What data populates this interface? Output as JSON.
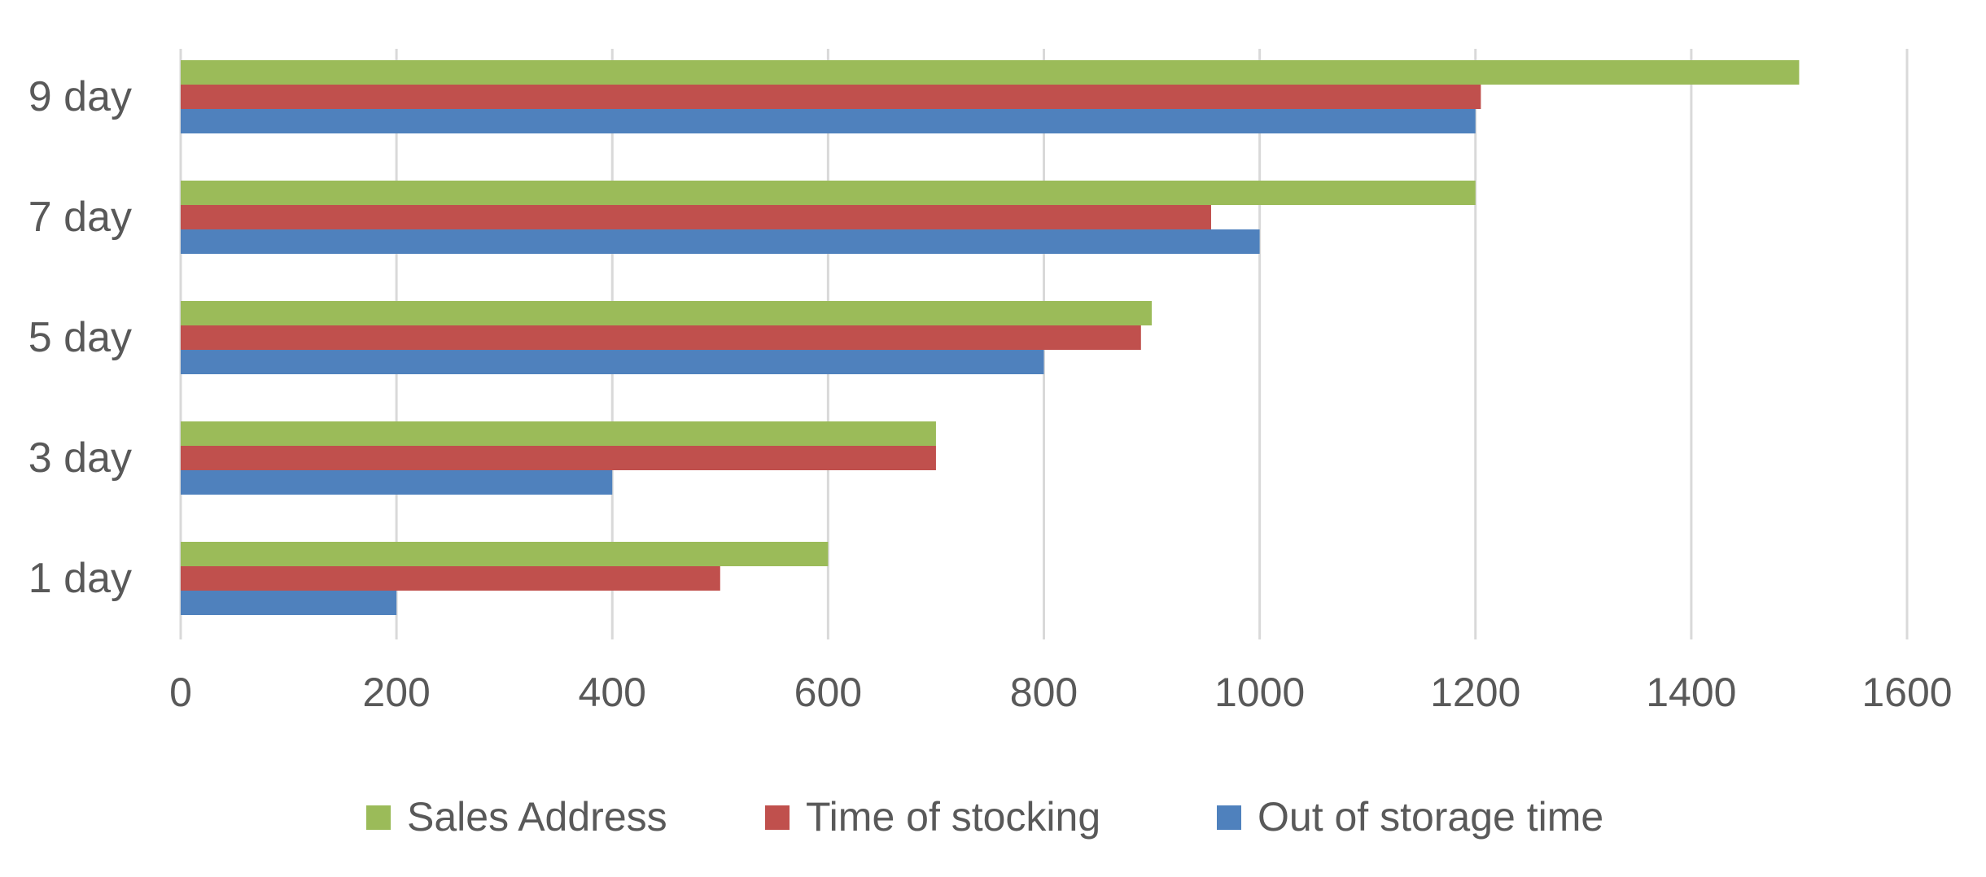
{
  "chart_data": {
    "type": "bar",
    "orientation": "horizontal",
    "categories": [
      "1 day",
      "3 day",
      "5 day",
      "7 day",
      "9 day"
    ],
    "series": [
      {
        "name": "Out of storage time",
        "color": "#4f81bd",
        "values": [
          200,
          400,
          800,
          1000,
          1200
        ]
      },
      {
        "name": "Time of stocking",
        "color": "#c0504d",
        "values": [
          500,
          700,
          890,
          955,
          1205
        ]
      },
      {
        "name": "Sales Address",
        "color": "#9bbb59",
        "values": [
          600,
          700,
          900,
          1200,
          1500
        ]
      }
    ],
    "xlim": [
      0,
      1600
    ],
    "xticks": [
      0,
      200,
      400,
      600,
      800,
      1000,
      1200,
      1400,
      1600
    ],
    "grid": "vertical",
    "legend_position": "bottom",
    "legend_order": [
      "Sales Address",
      "Time of stocking",
      "Out of storage time"
    ],
    "title": "",
    "xlabel": "",
    "ylabel": ""
  }
}
